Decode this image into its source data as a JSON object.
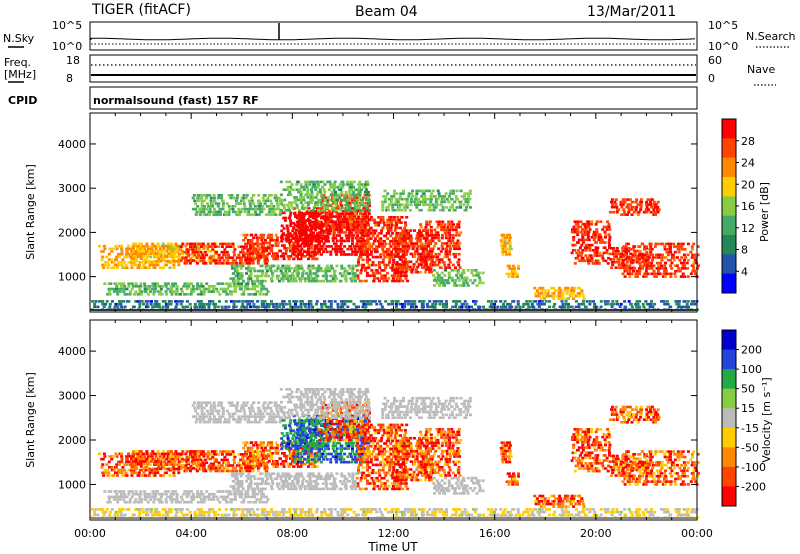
{
  "header": {
    "radar": "TIGER (fitACF)",
    "beam": "Beam 04",
    "date": "13/Mar/2011"
  },
  "summary_panels": {
    "nsky_label": "N.Sky",
    "nsky_ticks": [
      "10^5",
      "10^0"
    ],
    "nsearch_label": "N.Search",
    "nsearch_ticks": [
      "10^5",
      "10^0"
    ],
    "freq_label_line1": "Freq.",
    "freq_label_line2": "[MHz]",
    "freq_ticks": [
      "18",
      "8"
    ],
    "nave_label": "Nave",
    "nave_ticks": [
      "60",
      "0"
    ],
    "cpid_label": "CPID",
    "cpid_text": "normalsound (fast) 157 RF"
  },
  "chart_data": [
    {
      "type": "heatmap",
      "name": "power-panel",
      "xlabel": "",
      "ylabel": "Slant Range [km]",
      "ylim": [
        200,
        4700
      ],
      "xlim": [
        0,
        24
      ],
      "y_ticks": [
        "1000",
        "2000",
        "3000",
        "4000"
      ],
      "y_tick_values": [
        1000,
        2000,
        3000,
        4000
      ],
      "colorbar_label": "Power [dB]",
      "colorbar_ticks": [
        "28",
        "24",
        "20",
        "16",
        "12",
        "8",
        "4"
      ],
      "colorbar_colors": [
        "#ff0000",
        "#ff4400",
        "#ff8800",
        "#ffcc00",
        "#88cc44",
        "#44aa66",
        "#228855",
        "#2255aa",
        "#0000ff"
      ]
    },
    {
      "type": "heatmap",
      "name": "velocity-panel",
      "xlabel": "Time UT",
      "ylabel": "Slant Range [km]",
      "ylim": [
        200,
        4700
      ],
      "xlim": [
        0,
        24
      ],
      "x_ticks": [
        "00:00",
        "04:00",
        "08:00",
        "12:00",
        "16:00",
        "20:00",
        "00:00"
      ],
      "y_ticks": [
        "1000",
        "2000",
        "3000",
        "4000"
      ],
      "y_tick_values": [
        1000,
        2000,
        3000,
        4000
      ],
      "colorbar_label": "Velocity [m s⁻¹]",
      "colorbar_ticks": [
        "200",
        "100",
        "50",
        "15",
        "-15",
        "-50",
        "-100",
        "-200"
      ],
      "colorbar_colors": [
        "#0000cc",
        "#2244dd",
        "#22aa44",
        "#88cc44",
        "#bbbbbb",
        "#ffcc00",
        "#ff8800",
        "#ff4400",
        "#ff0000"
      ]
    }
  ]
}
